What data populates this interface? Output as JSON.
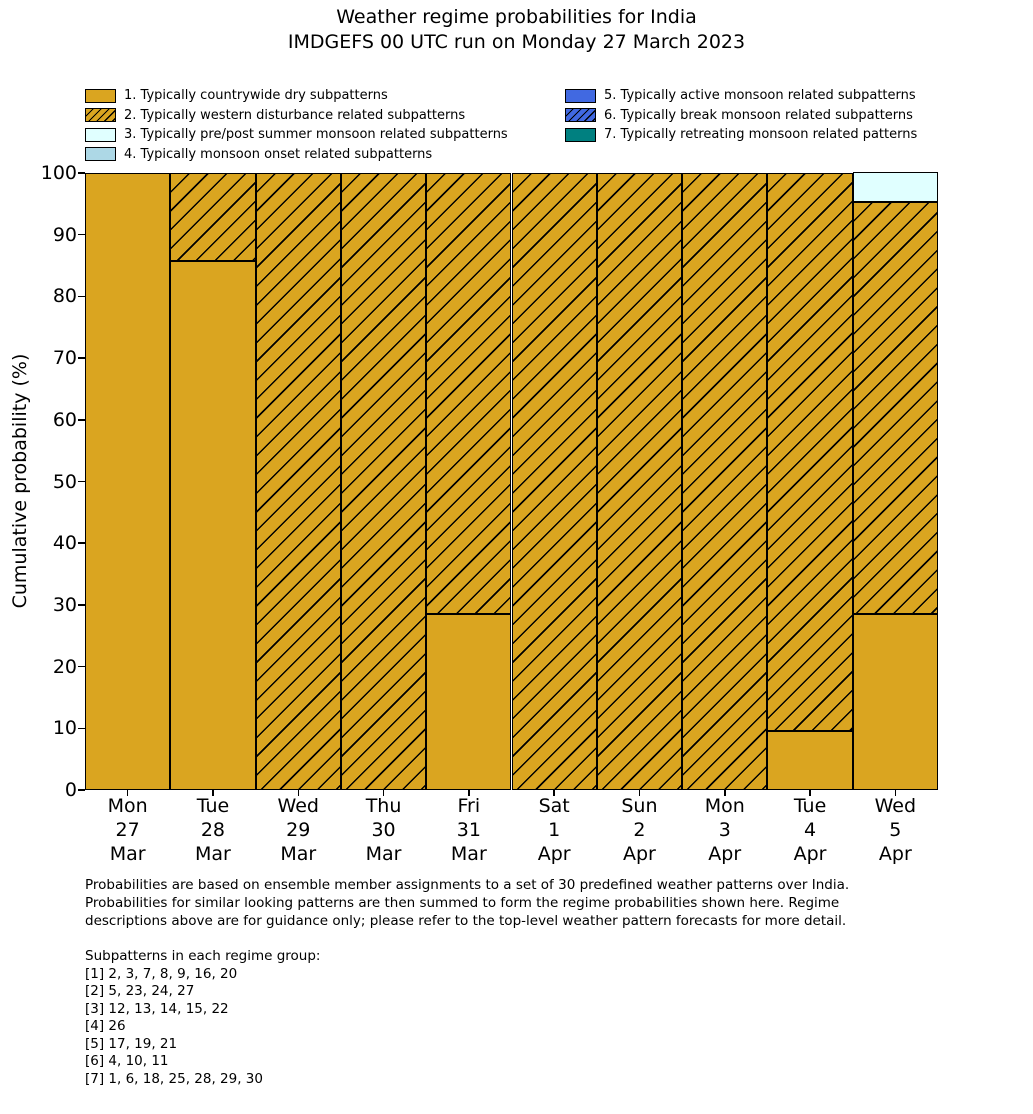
{
  "title": {
    "line1": "Weather regime probabilities for India",
    "line2": "IMDGEFS 00 UTC run on Monday 27 March 2023"
  },
  "colors": {
    "regime_dry": "#DAA520",
    "regime_prepost_monsoon": "#E0FFFF",
    "regime_monsoon_onset": "#ADD8E6",
    "regime_active_monsoon": "#4169E1",
    "regime_retreating_monsoon": "#008080",
    "hatch": "#000000",
    "bar_edge": "#000000",
    "background": "#FFFFFF"
  },
  "legend": {
    "columns": [
      [
        0,
        1,
        2,
        3
      ],
      [
        4,
        5,
        6
      ]
    ],
    "items": [
      {
        "label": "1. Typically countrywide dry subpatterns",
        "fill": "#DAA520",
        "hatch": false
      },
      {
        "label": "2. Typically western disturbance related subpatterns",
        "fill": "#DAA520",
        "hatch": true
      },
      {
        "label": "3. Typically pre/post summer monsoon related subpatterns",
        "fill": "#E0FFFF",
        "hatch": false
      },
      {
        "label": "4. Typically monsoon onset related subpatterns",
        "fill": "#ADD8E6",
        "hatch": false
      },
      {
        "label": "5. Typically active monsoon related subpatterns",
        "fill": "#4169E1",
        "hatch": false
      },
      {
        "label": "6. Typically break monsoon related subpatterns",
        "fill": "#4169E1",
        "hatch": true
      },
      {
        "label": "7. Typically retreating monsoon related patterns",
        "fill": "#008080",
        "hatch": false
      }
    ]
  },
  "chart_data": {
    "type": "bar",
    "stacked": true,
    "title": "Weather regime probabilities for India — IMDGEFS 00 UTC run on Monday 27 March 2023",
    "ylabel": "Cumulative probability (%)",
    "ylim": [
      0,
      100
    ],
    "yticks": [
      0,
      10,
      20,
      30,
      40,
      50,
      60,
      70,
      80,
      90,
      100
    ],
    "legend_position": "upper left, two columns above plot",
    "grid": false,
    "categories": [
      [
        "Mon",
        "27",
        "Mar"
      ],
      [
        "Tue",
        "28",
        "Mar"
      ],
      [
        "Wed",
        "29",
        "Mar"
      ],
      [
        "Thu",
        "30",
        "Mar"
      ],
      [
        "Fri",
        "31",
        "Mar"
      ],
      [
        "Sat",
        "1",
        "Apr"
      ],
      [
        "Sun",
        "2",
        "Apr"
      ],
      [
        "Mon",
        "3",
        "Apr"
      ],
      [
        "Tue",
        "4",
        "Apr"
      ],
      [
        "Wed",
        "5",
        "Apr"
      ]
    ],
    "series": [
      {
        "name": "1. Typically countrywide dry subpatterns",
        "fill": "#DAA520",
        "hatch": false,
        "values": [
          100,
          85.7,
          0,
          0,
          28.6,
          0,
          0,
          0,
          9.5,
          28.6
        ]
      },
      {
        "name": "2. Typically western disturbance related subpatterns",
        "fill": "#DAA520",
        "hatch": true,
        "values": [
          0,
          14.3,
          100,
          100,
          71.4,
          100,
          100,
          100,
          90.5,
          66.7
        ]
      },
      {
        "name": "3. Typically pre/post summer monsoon related subpatterns",
        "fill": "#E0FFFF",
        "hatch": false,
        "values": [
          0,
          0,
          0,
          0,
          0,
          0,
          0,
          0,
          0,
          4.8
        ]
      },
      {
        "name": "4. Typically monsoon onset related subpatterns",
        "fill": "#ADD8E6",
        "hatch": false,
        "values": [
          0,
          0,
          0,
          0,
          0,
          0,
          0,
          0,
          0,
          0
        ]
      },
      {
        "name": "5. Typically active monsoon related subpatterns",
        "fill": "#4169E1",
        "hatch": false,
        "values": [
          0,
          0,
          0,
          0,
          0,
          0,
          0,
          0,
          0,
          0
        ]
      },
      {
        "name": "6. Typically break monsoon related subpatterns",
        "fill": "#4169E1",
        "hatch": true,
        "values": [
          0,
          0,
          0,
          0,
          0,
          0,
          0,
          0,
          0,
          0
        ]
      },
      {
        "name": "7. Typically retreating monsoon related patterns",
        "fill": "#008080",
        "hatch": false,
        "values": [
          0,
          0,
          0,
          0,
          0,
          0,
          0,
          0,
          0,
          0
        ]
      }
    ]
  },
  "footer": {
    "para": [
      "Probabilities are based on ensemble member assignments to a set of 30 predefined weather patterns over India.",
      "Probabilities for similar looking patterns are then summed to form the regime probabilities shown here. Regime",
      "descriptions above are for guidance only; please refer to the top-level weather pattern forecasts for more detail."
    ],
    "subpatterns_title": "Subpatterns in each regime group:",
    "subpatterns": [
      "[1] 2, 3, 7, 8, 9, 16, 20",
      "[2] 5, 23, 24, 27",
      "[3] 12, 13, 14, 15, 22",
      "[4] 26",
      "[5] 17, 19, 21",
      "[6] 4, 10, 11",
      "[7] 1, 6, 18, 25, 28, 29, 30"
    ]
  }
}
